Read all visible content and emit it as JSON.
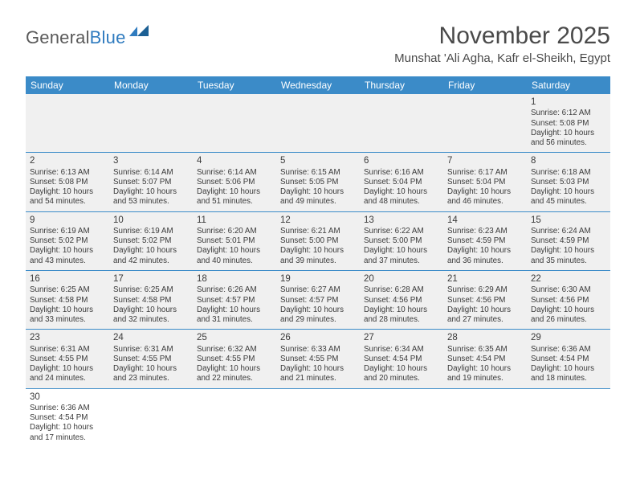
{
  "logo": {
    "text_general": "General",
    "text_blue": "Blue"
  },
  "title": "November 2025",
  "location": "Munshat 'Ali Agha, Kafr el-Sheikh, Egypt",
  "colors": {
    "header_bg": "#3b8bc8",
    "header_text": "#ffffff",
    "cell_bg": "#f0f0f0",
    "border": "#3b8bc8",
    "body_text": "#3a3a3a",
    "title_text": "#4a4a4a",
    "logo_gray": "#5a5a5a",
    "logo_blue": "#2f7bbf"
  },
  "weekdays": [
    "Sunday",
    "Monday",
    "Tuesday",
    "Wednesday",
    "Thursday",
    "Friday",
    "Saturday"
  ],
  "weeks": [
    [
      null,
      null,
      null,
      null,
      null,
      null,
      {
        "d": "1",
        "sr": "Sunrise: 6:12 AM",
        "ss": "Sunset: 5:08 PM",
        "dl": "Daylight: 10 hours and 56 minutes."
      }
    ],
    [
      {
        "d": "2",
        "sr": "Sunrise: 6:13 AM",
        "ss": "Sunset: 5:08 PM",
        "dl": "Daylight: 10 hours and 54 minutes."
      },
      {
        "d": "3",
        "sr": "Sunrise: 6:14 AM",
        "ss": "Sunset: 5:07 PM",
        "dl": "Daylight: 10 hours and 53 minutes."
      },
      {
        "d": "4",
        "sr": "Sunrise: 6:14 AM",
        "ss": "Sunset: 5:06 PM",
        "dl": "Daylight: 10 hours and 51 minutes."
      },
      {
        "d": "5",
        "sr": "Sunrise: 6:15 AM",
        "ss": "Sunset: 5:05 PM",
        "dl": "Daylight: 10 hours and 49 minutes."
      },
      {
        "d": "6",
        "sr": "Sunrise: 6:16 AM",
        "ss": "Sunset: 5:04 PM",
        "dl": "Daylight: 10 hours and 48 minutes."
      },
      {
        "d": "7",
        "sr": "Sunrise: 6:17 AM",
        "ss": "Sunset: 5:04 PM",
        "dl": "Daylight: 10 hours and 46 minutes."
      },
      {
        "d": "8",
        "sr": "Sunrise: 6:18 AM",
        "ss": "Sunset: 5:03 PM",
        "dl": "Daylight: 10 hours and 45 minutes."
      }
    ],
    [
      {
        "d": "9",
        "sr": "Sunrise: 6:19 AM",
        "ss": "Sunset: 5:02 PM",
        "dl": "Daylight: 10 hours and 43 minutes."
      },
      {
        "d": "10",
        "sr": "Sunrise: 6:19 AM",
        "ss": "Sunset: 5:02 PM",
        "dl": "Daylight: 10 hours and 42 minutes."
      },
      {
        "d": "11",
        "sr": "Sunrise: 6:20 AM",
        "ss": "Sunset: 5:01 PM",
        "dl": "Daylight: 10 hours and 40 minutes."
      },
      {
        "d": "12",
        "sr": "Sunrise: 6:21 AM",
        "ss": "Sunset: 5:00 PM",
        "dl": "Daylight: 10 hours and 39 minutes."
      },
      {
        "d": "13",
        "sr": "Sunrise: 6:22 AM",
        "ss": "Sunset: 5:00 PM",
        "dl": "Daylight: 10 hours and 37 minutes."
      },
      {
        "d": "14",
        "sr": "Sunrise: 6:23 AM",
        "ss": "Sunset: 4:59 PM",
        "dl": "Daylight: 10 hours and 36 minutes."
      },
      {
        "d": "15",
        "sr": "Sunrise: 6:24 AM",
        "ss": "Sunset: 4:59 PM",
        "dl": "Daylight: 10 hours and 35 minutes."
      }
    ],
    [
      {
        "d": "16",
        "sr": "Sunrise: 6:25 AM",
        "ss": "Sunset: 4:58 PM",
        "dl": "Daylight: 10 hours and 33 minutes."
      },
      {
        "d": "17",
        "sr": "Sunrise: 6:25 AM",
        "ss": "Sunset: 4:58 PM",
        "dl": "Daylight: 10 hours and 32 minutes."
      },
      {
        "d": "18",
        "sr": "Sunrise: 6:26 AM",
        "ss": "Sunset: 4:57 PM",
        "dl": "Daylight: 10 hours and 31 minutes."
      },
      {
        "d": "19",
        "sr": "Sunrise: 6:27 AM",
        "ss": "Sunset: 4:57 PM",
        "dl": "Daylight: 10 hours and 29 minutes."
      },
      {
        "d": "20",
        "sr": "Sunrise: 6:28 AM",
        "ss": "Sunset: 4:56 PM",
        "dl": "Daylight: 10 hours and 28 minutes."
      },
      {
        "d": "21",
        "sr": "Sunrise: 6:29 AM",
        "ss": "Sunset: 4:56 PM",
        "dl": "Daylight: 10 hours and 27 minutes."
      },
      {
        "d": "22",
        "sr": "Sunrise: 6:30 AM",
        "ss": "Sunset: 4:56 PM",
        "dl": "Daylight: 10 hours and 26 minutes."
      }
    ],
    [
      {
        "d": "23",
        "sr": "Sunrise: 6:31 AM",
        "ss": "Sunset: 4:55 PM",
        "dl": "Daylight: 10 hours and 24 minutes."
      },
      {
        "d": "24",
        "sr": "Sunrise: 6:31 AM",
        "ss": "Sunset: 4:55 PM",
        "dl": "Daylight: 10 hours and 23 minutes."
      },
      {
        "d": "25",
        "sr": "Sunrise: 6:32 AM",
        "ss": "Sunset: 4:55 PM",
        "dl": "Daylight: 10 hours and 22 minutes."
      },
      {
        "d": "26",
        "sr": "Sunrise: 6:33 AM",
        "ss": "Sunset: 4:55 PM",
        "dl": "Daylight: 10 hours and 21 minutes."
      },
      {
        "d": "27",
        "sr": "Sunrise: 6:34 AM",
        "ss": "Sunset: 4:54 PM",
        "dl": "Daylight: 10 hours and 20 minutes."
      },
      {
        "d": "28",
        "sr": "Sunrise: 6:35 AM",
        "ss": "Sunset: 4:54 PM",
        "dl": "Daylight: 10 hours and 19 minutes."
      },
      {
        "d": "29",
        "sr": "Sunrise: 6:36 AM",
        "ss": "Sunset: 4:54 PM",
        "dl": "Daylight: 10 hours and 18 minutes."
      }
    ],
    [
      {
        "d": "30",
        "sr": "Sunrise: 6:36 AM",
        "ss": "Sunset: 4:54 PM",
        "dl": "Daylight: 10 hours and 17 minutes."
      },
      null,
      null,
      null,
      null,
      null,
      null
    ]
  ]
}
